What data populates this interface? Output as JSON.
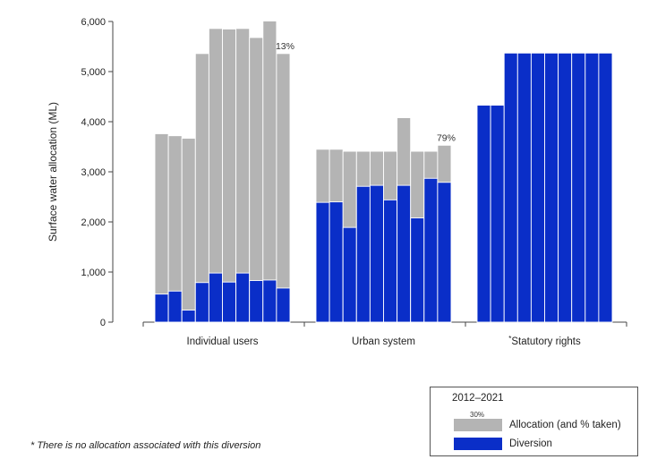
{
  "chart_data": {
    "type": "bar",
    "ylabel": "Surface water allocation (ML)",
    "ylim": [
      0,
      6000
    ],
    "yticks": [
      0,
      1000,
      2000,
      3000,
      4000,
      5000,
      6000
    ],
    "ytick_labels": [
      "0",
      "1,000",
      "2,000",
      "3,000",
      "4,000",
      "5,000",
      "6,000"
    ],
    "grid": false,
    "legend_position": "bottom-right",
    "colors": {
      "allocation": "#b4b4b4",
      "diversion": "#0a2ec8"
    },
    "groups": [
      {
        "label": "Individual users",
        "years": [
          "2012",
          "2013",
          "2014",
          "2015",
          "2016",
          "2017",
          "2018",
          "2019",
          "2020",
          "2021"
        ],
        "allocation": [
          3760,
          3720,
          3670,
          5360,
          5860,
          5850,
          5860,
          5680,
          6010,
          5360
        ],
        "diversion": [
          560,
          620,
          240,
          790,
          980,
          800,
          980,
          830,
          840,
          680
        ],
        "annotation": "13%"
      },
      {
        "label": "Urban system",
        "years": [
          "2012",
          "2013",
          "2014",
          "2015",
          "2016",
          "2017",
          "2018",
          "2019",
          "2020",
          "2021"
        ],
        "allocation": [
          3450,
          3450,
          3410,
          3410,
          3410,
          3410,
          4080,
          3410,
          3410,
          3530
        ],
        "diversion": [
          2390,
          2400,
          1890,
          2710,
          2730,
          2440,
          2730,
          2080,
          2870,
          2790
        ],
        "annotation": "79%"
      },
      {
        "label": "Statutory rights",
        "label_prefix": "*",
        "years": [
          "2012",
          "2013",
          "2014",
          "2015",
          "2016",
          "2017",
          "2018",
          "2019",
          "2020",
          "2021"
        ],
        "allocation": [],
        "diversion": [
          4330,
          4330,
          5370,
          5370,
          5370,
          5370,
          5370,
          5370,
          5370,
          5370
        ],
        "annotation": ""
      }
    ]
  },
  "legend": {
    "title": "2012–2021",
    "pct_example": "30%",
    "allocation_label": "Allocation (and % taken)",
    "diversion_label": "Diversion"
  },
  "footnote": "* There is no allocation associated with this diversion"
}
